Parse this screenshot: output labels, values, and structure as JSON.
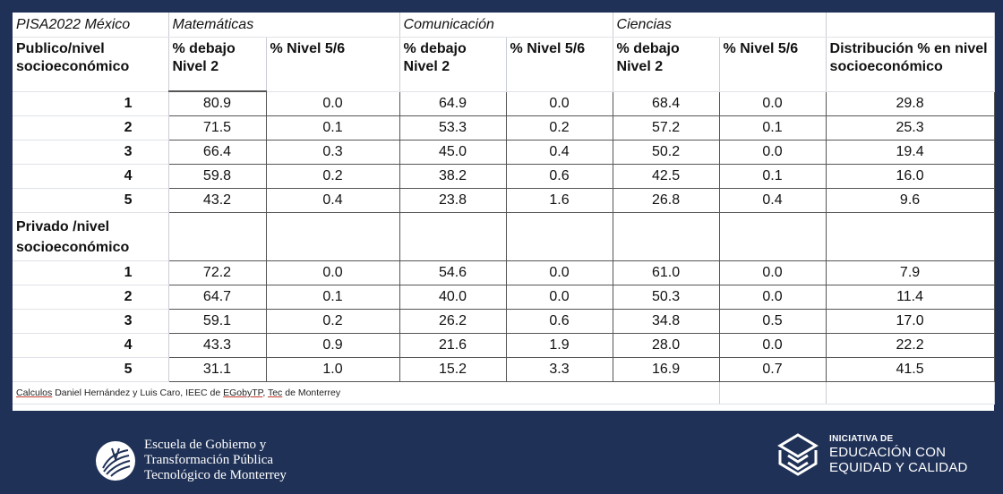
{
  "table": {
    "title": "PISA2022 México",
    "groups": [
      "Matemáticas",
      "Comunicación",
      "Ciencias"
    ],
    "public_label": "Publico/nivel socioeconómico",
    "private_label": "Privado /nivel socioeconómico",
    "headers": [
      "% debajo Nivel 2",
      "% Nivel 5/6",
      "% debajo Nivel 2",
      "% Nivel 5/6",
      "% debajo Nivel 2",
      "% Nivel 5/6",
      "Distribución % en nivel socioeconómico"
    ],
    "public_rows": [
      {
        "level": "1",
        "cells": [
          "80.9",
          "0.0",
          "64.9",
          "0.0",
          "68.4",
          "0.0",
          "29.8"
        ]
      },
      {
        "level": "2",
        "cells": [
          "71.5",
          "0.1",
          "53.3",
          "0.2",
          "57.2",
          "0.1",
          "25.3"
        ]
      },
      {
        "level": "3",
        "cells": [
          "66.4",
          "0.3",
          "45.0",
          "0.4",
          "50.2",
          "0.0",
          "19.4"
        ]
      },
      {
        "level": "4",
        "cells": [
          "59.8",
          "0.2",
          "38.2",
          "0.6",
          "42.5",
          "0.1",
          "16.0"
        ]
      },
      {
        "level": "5",
        "cells": [
          "43.2",
          "0.4",
          "23.8",
          "1.6",
          "26.8",
          "0.4",
          "9.6"
        ]
      }
    ],
    "private_rows": [
      {
        "level": "1",
        "cells": [
          "72.2",
          "0.0",
          "54.6",
          "0.0",
          "61.0",
          "0.0",
          "7.9"
        ]
      },
      {
        "level": "2",
        "cells": [
          "64.7",
          "0.1",
          "40.0",
          "0.0",
          "50.3",
          "0.0",
          "11.4"
        ]
      },
      {
        "level": "3",
        "cells": [
          "59.1",
          "0.2",
          "26.2",
          "0.6",
          "34.8",
          "0.5",
          "17.0"
        ]
      },
      {
        "level": "4",
        "cells": [
          "43.3",
          "0.9",
          "21.6",
          "1.9",
          "28.0",
          "0.0",
          "22.2"
        ]
      },
      {
        "level": "5",
        "cells": [
          "31.1",
          "1.0",
          "15.2",
          "3.3",
          "16.9",
          "0.7",
          "41.5"
        ]
      }
    ],
    "footnote": {
      "w1": "Calculos",
      "t1": " Daniel Hernández y Luis Caro, IEEC de ",
      "w2": "EGobyTP",
      "t2": ", ",
      "w3": "Tec",
      "t3": " de Monterrey"
    }
  },
  "logo_left": {
    "line1": "Escuela de Gobierno y",
    "line2": "Transformación Pública",
    "line3": "Tecnológico de Monterrey"
  },
  "logo_right": {
    "line1": "INICIATIVA DE",
    "line2": "EDUCACIÓN CON",
    "line3": "EQUIDAD Y CALIDAD"
  },
  "colors": {
    "background": "#1f3157",
    "sheet": "#ffffff"
  }
}
